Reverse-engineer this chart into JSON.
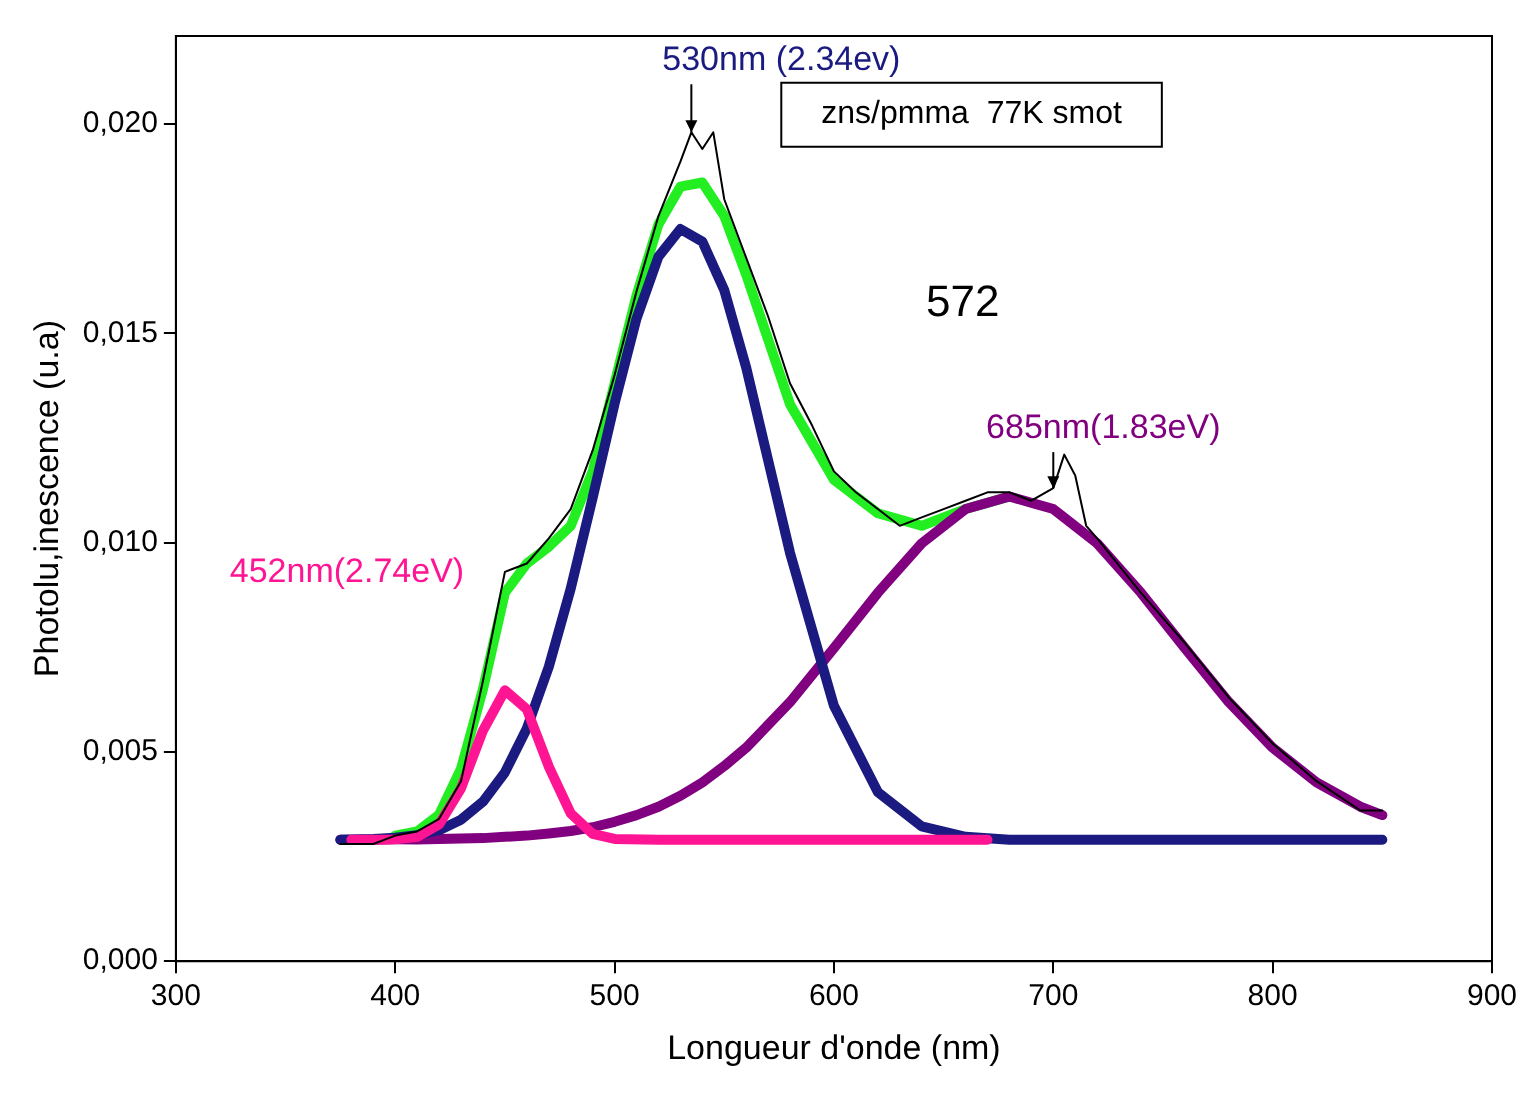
{
  "chart_data": {
    "type": "line",
    "xlabel": "Longueur d'onde (nm)",
    "ylabel": "Photolu,inescence (u.a)",
    "xlim": [
      300,
      900
    ],
    "xticks": [
      300,
      400,
      500,
      600,
      700,
      800,
      900
    ],
    "ylim": [
      0,
      0.0221
    ],
    "yticks": [
      {
        "value": 0,
        "label": "0,000"
      },
      {
        "value": 0.005,
        "label": "0,005"
      },
      {
        "value": 0.01,
        "label": "0,010"
      },
      {
        "value": 0.015,
        "label": "0,015"
      },
      {
        "value": 0.02,
        "label": "0,020"
      }
    ],
    "grid": false,
    "legend": false,
    "marker": "none",
    "line_style": "solid",
    "annotations": [
      {
        "text": "530nm (2.34ev)",
        "x": 535,
        "y": 0.0198
      },
      "452nm(2.74eV)",
      {
        "text": "685nm(1.83eV)",
        "x": 700,
        "y": 0.0113
      },
      "zns/pmma  77K smot",
      "572"
    ],
    "series": [
      {
        "color": "#000000",
        "x": [
          375,
          390,
          400,
          410,
          420,
          430,
          440,
          450,
          460,
          470,
          480,
          490,
          500,
          510,
          520,
          530,
          535,
          540,
          545,
          550,
          560,
          570,
          580,
          590,
          600,
          610,
          620,
          630,
          640,
          650,
          660,
          670,
          680,
          690,
          700,
          705,
          710,
          715,
          720,
          740,
          760,
          780,
          800,
          820,
          840,
          850
        ],
        "values": [
          0.0028,
          0.0028,
          0.003,
          0.0031,
          0.0034,
          0.0043,
          0.0067,
          0.0093,
          0.0095,
          0.0101,
          0.0108,
          0.0122,
          0.014,
          0.016,
          0.0178,
          0.0191,
          0.0198,
          0.0194,
          0.0198,
          0.0182,
          0.0168,
          0.0154,
          0.0138,
          0.0128,
          0.0117,
          0.0112,
          0.0108,
          0.0104,
          0.0106,
          0.0108,
          0.011,
          0.0112,
          0.0112,
          0.011,
          0.0113,
          0.0121,
          0.0116,
          0.0104,
          0.0101,
          0.0088,
          0.0076,
          0.0063,
          0.0052,
          0.0043,
          0.0036,
          0.0036
        ]
      },
      {
        "color": "#ff1493",
        "x": [
          380,
          390,
          400,
          410,
          420,
          430,
          440,
          450,
          460,
          470,
          480,
          490,
          500,
          520,
          560,
          600,
          640,
          670
        ],
        "values": [
          0.0029,
          0.0029,
          0.00291,
          0.00297,
          0.00327,
          0.00413,
          0.00551,
          0.00647,
          0.00602,
          0.00465,
          0.00353,
          0.00304,
          0.00292,
          0.0029,
          0.0029,
          0.0029,
          0.0029,
          0.0029
        ]
      },
      {
        "color": "#1a1a80",
        "x": [
          375,
          390,
          400,
          410,
          420,
          430,
          440,
          450,
          460,
          470,
          480,
          490,
          500,
          510,
          520,
          530,
          540,
          550,
          560,
          580,
          600,
          620,
          640,
          660,
          680,
          720,
          760,
          800,
          850
        ],
        "values": [
          0.0029,
          0.00292,
          0.00295,
          0.00301,
          0.00313,
          0.00338,
          0.00381,
          0.00451,
          0.00556,
          0.00703,
          0.0089,
          0.01107,
          0.01332,
          0.01535,
          0.01683,
          0.01749,
          0.01719,
          0.01603,
          0.01418,
          0.00975,
          0.0061,
          0.00404,
          0.00322,
          0.00297,
          0.0029,
          0.0029,
          0.0029,
          0.0029,
          0.0029
        ]
      },
      {
        "color": "#800080",
        "x": [
          375,
          390,
          400,
          410,
          420,
          430,
          440,
          450,
          460,
          470,
          480,
          490,
          500,
          510,
          520,
          530,
          540,
          550,
          560,
          580,
          600,
          620,
          640,
          660,
          680,
          700,
          720,
          740,
          760,
          780,
          800,
          820,
          840,
          850
        ],
        "values": [
          0.0029,
          0.0029,
          0.00291,
          0.00291,
          0.00292,
          0.00293,
          0.00294,
          0.00297,
          0.003,
          0.00305,
          0.00311,
          0.0032,
          0.00333,
          0.00349,
          0.00369,
          0.00395,
          0.00427,
          0.00466,
          0.0051,
          0.00619,
          0.00748,
          0.0088,
          0.00998,
          0.0108,
          0.0111,
          0.0108,
          0.00998,
          0.0088,
          0.00748,
          0.00619,
          0.0051,
          0.00427,
          0.00369,
          0.00349
        ]
      },
      {
        "color": "#22ee22",
        "x": [
          400,
          410,
          420,
          430,
          440,
          450,
          460,
          470,
          480,
          490,
          500,
          510,
          520,
          530,
          540,
          550,
          560,
          580,
          600,
          620,
          640,
          660,
          680
        ],
        "values": [
          0.003,
          0.0031,
          0.0035,
          0.0046,
          0.0065,
          0.0088,
          0.0095,
          0.0099,
          0.0104,
          0.0117,
          0.0138,
          0.0159,
          0.0176,
          0.0185,
          0.0186,
          0.0178,
          0.0164,
          0.0133,
          0.0115,
          0.0107,
          0.0104,
          0.0108,
          0.0111
        ]
      }
    ]
  }
}
